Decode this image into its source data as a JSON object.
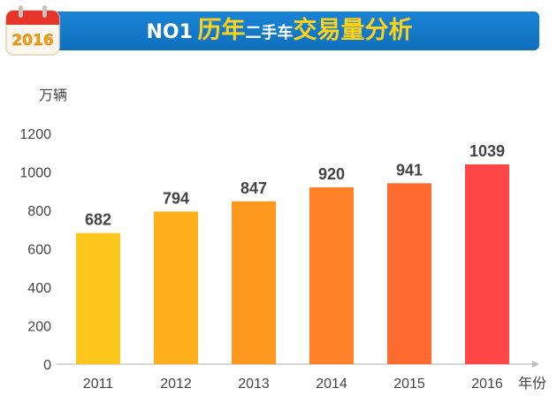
{
  "header": {
    "badge_year": "2016",
    "title_prefix": "NO1",
    "title_part1": "历年",
    "title_part2": "二手车",
    "title_part3": "交易量分析"
  },
  "colors": {
    "banner": "#1478c8",
    "title_accent": "#ffd21a",
    "badge_red": "#e8352c",
    "badge_year": "#f0a01a"
  },
  "icons": {
    "badge": "calendar-icon"
  },
  "chart_data": {
    "type": "bar",
    "categories": [
      "2011",
      "2012",
      "2013",
      "2014",
      "2015",
      "2016"
    ],
    "values": [
      682,
      794,
      847,
      920,
      941,
      1039
    ],
    "bar_colors": [
      "#ffc61e",
      "#ffaf1a",
      "#ff981e",
      "#ff8128",
      "#ff6a2e",
      "#ff4747"
    ],
    "ylabel": "万辆",
    "xlabel": "年份",
    "ylim": [
      0,
      1200
    ],
    "yticks": [
      0,
      200,
      400,
      600,
      800,
      1000,
      1200
    ],
    "grid": false,
    "legend": "none"
  }
}
